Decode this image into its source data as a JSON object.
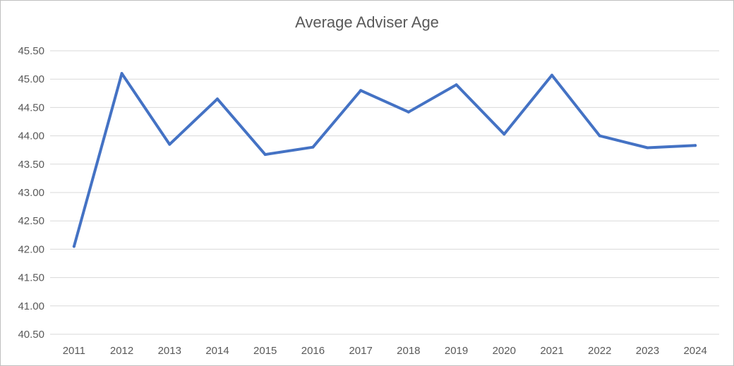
{
  "chart_data": {
    "type": "line",
    "title": "Average Adviser Age",
    "xlabel": "",
    "ylabel": "",
    "categories": [
      "2011",
      "2012",
      "2013",
      "2014",
      "2015",
      "2016",
      "2017",
      "2018",
      "2019",
      "2020",
      "2021",
      "2022",
      "2023",
      "2024"
    ],
    "series": [
      {
        "values": [
          42.05,
          45.1,
          43.85,
          44.65,
          43.67,
          43.8,
          44.8,
          44.42,
          44.9,
          44.03,
          45.07,
          44.0,
          43.79,
          43.83
        ]
      }
    ],
    "ylim": [
      40.5,
      45.5
    ],
    "yticks": [
      "40.50",
      "41.00",
      "41.50",
      "42.00",
      "42.50",
      "43.00",
      "43.50",
      "44.00",
      "44.50",
      "45.00",
      "45.50"
    ],
    "grid": true,
    "legend": "none",
    "colors": {
      "line": "#4472C4",
      "grid": "#d9d9d9",
      "text": "#595959"
    }
  }
}
